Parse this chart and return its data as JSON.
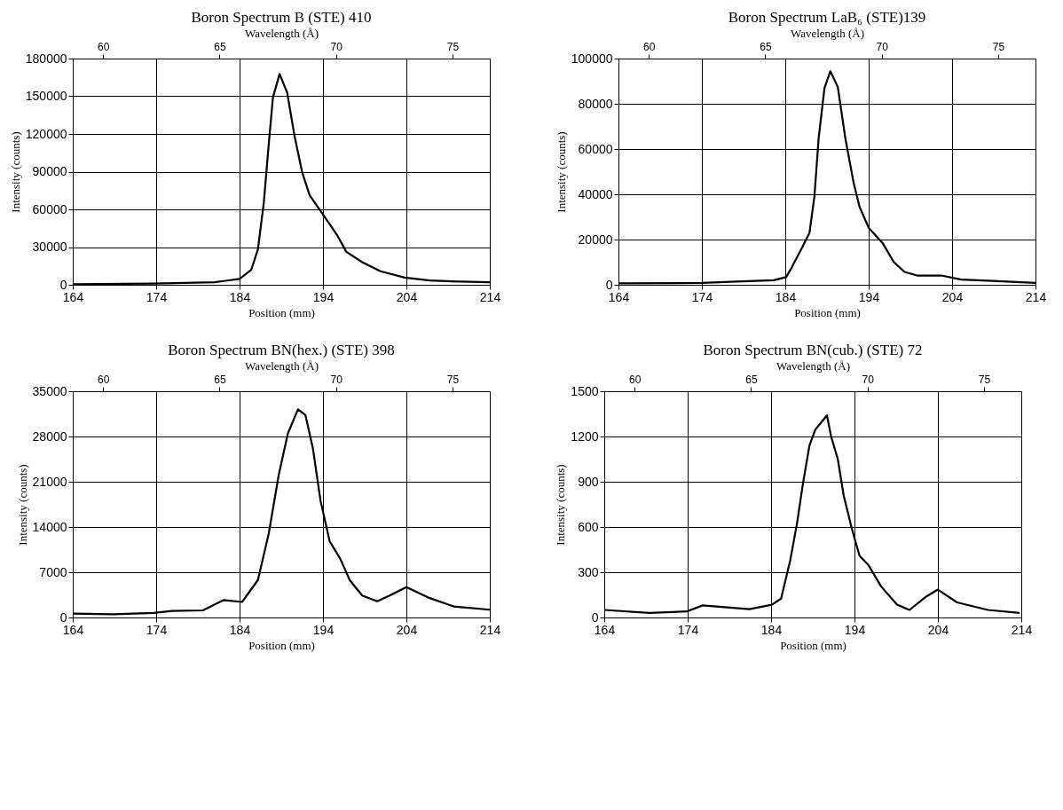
{
  "chart_data": [
    {
      "type": "line",
      "title": "Boron Spectrum B (STE) 410",
      "xlabel": "Position (mm)",
      "ylabel": "Intensity (counts)",
      "x2label": "Wavelength (Å)",
      "xlim": [
        164,
        214
      ],
      "xticks": [
        164,
        174,
        184,
        194,
        204,
        214
      ],
      "ylim": [
        0,
        180000
      ],
      "yticks": [
        0,
        30000,
        60000,
        90000,
        120000,
        150000,
        180000
      ],
      "x2lim": [
        58.7,
        76.6
      ],
      "x2ticks": [
        60,
        65,
        70,
        75
      ],
      "grid": true,
      "legend": false,
      "line_style": "solid",
      "series": [
        {
          "color": "#000000",
          "x": [
            164,
            173.7,
            181,
            184,
            185.4,
            186.2,
            186.9,
            187.5,
            188.0,
            188.8,
            189.7,
            190.6,
            191.5,
            192.4,
            193.9,
            195.7,
            196.8,
            198.7,
            200.9,
            203.8,
            206.8,
            210.4,
            214
          ],
          "values": [
            500,
            1000,
            2000,
            4700,
            11900,
            28200,
            65000,
            112000,
            149000,
            167700,
            153000,
            118000,
            89600,
            71200,
            56900,
            39500,
            26200,
            18000,
            10800,
            5700,
            3500,
            2500,
            2000
          ]
        }
      ]
    },
    {
      "type": "line",
      "title": "Boron Spectrum LaB₆ (STE)139",
      "xlabel": "Position (mm)",
      "ylabel": "Intensity (counts)",
      "x2label": "Wavelength (Å)",
      "xlim": [
        164,
        214
      ],
      "xticks": [
        164,
        174,
        184,
        194,
        204,
        214
      ],
      "ylim": [
        0,
        100000
      ],
      "yticks": [
        0,
        20000,
        40000,
        60000,
        80000,
        100000
      ],
      "x2lim": [
        58.7,
        76.6
      ],
      "x2ticks": [
        60,
        65,
        70,
        75
      ],
      "grid": true,
      "legend": false,
      "line_style": "solid",
      "series": [
        {
          "color": "#000000",
          "x": [
            164,
            174,
            178.8,
            182.6,
            184.1,
            184.8,
            186.1,
            186.9,
            187.5,
            188.0,
            188.7,
            189.4,
            190.3,
            191.2,
            192.2,
            192.9,
            194.0,
            195.7,
            197.0,
            198.3,
            199.8,
            202.7,
            205.1,
            208.9,
            214
          ],
          "values": [
            600,
            800,
            1500,
            2000,
            3400,
            7800,
            17100,
            22900,
            39200,
            64800,
            86900,
            94400,
            87400,
            64800,
            45000,
            34500,
            25200,
            18300,
            10100,
            5700,
            4100,
            4100,
            2300,
            1700,
            800
          ]
        }
      ]
    },
    {
      "type": "line",
      "title": "Boron Spectrum BN(hex.) (STE) 398",
      "xlabel": "Position (mm)",
      "ylabel": "Intensity (counts)",
      "x2label": "Wavelength (Å)",
      "xlim": [
        164,
        214
      ],
      "xticks": [
        164,
        174,
        184,
        194,
        204,
        214
      ],
      "ylim": [
        0,
        35000
      ],
      "yticks": [
        0,
        7000,
        14000,
        21000,
        28000,
        35000
      ],
      "x2lim": [
        58.7,
        76.6
      ],
      "x2ticks": [
        60,
        65,
        70,
        75
      ],
      "grid": true,
      "legend": false,
      "line_style": "solid",
      "series": [
        {
          "color": "#000000",
          "x": [
            164,
            168.9,
            173.7,
            175.9,
            179.6,
            182.1,
            184.3,
            186.2,
            187.5,
            188.7,
            189.8,
            191.0,
            191.9,
            192.8,
            193.7,
            194.8,
            196.1,
            197.2,
            198.7,
            200.5,
            202.0,
            204.0,
            206.8,
            209.7,
            214
          ],
          "values": [
            600,
            500,
            700,
            1000,
            1100,
            2700,
            2400,
            5800,
            13000,
            22100,
            28500,
            32200,
            31300,
            26100,
            18100,
            11800,
            9000,
            5800,
            3400,
            2500,
            3400,
            4700,
            3000,
            1700,
            1200
          ]
        }
      ]
    },
    {
      "type": "line",
      "title": "Boron Spectrum BN(cub.) (STE) 72",
      "xlabel": "Position (mm)",
      "ylabel": "Intensity (counts)",
      "x2label": "Wavelength (Å)",
      "xlim": [
        164,
        214
      ],
      "xticks": [
        164,
        174,
        184,
        194,
        204,
        214
      ],
      "ylim": [
        0,
        1500
      ],
      "yticks": [
        0,
        300,
        600,
        900,
        1200,
        1500
      ],
      "x2lim": [
        58.7,
        76.6
      ],
      "x2ticks": [
        60,
        65,
        70,
        75
      ],
      "grid": true,
      "legend": false,
      "line_style": "solid",
      "series": [
        {
          "color": "#000000",
          "x": [
            164,
            169.4,
            173.9,
            175.8,
            181.4,
            184.1,
            185.2,
            186.3,
            187.1,
            187.8,
            188.6,
            189.3,
            190.1,
            190.7,
            191.2,
            192.0,
            192.7,
            193.7,
            194.6,
            195.7,
            197.2,
            199.1,
            200.6,
            202.5,
            204.0,
            206.3,
            210.0,
            213.8
          ],
          "values": [
            50,
            30,
            40,
            80,
            55,
            85,
            125,
            380,
            620,
            880,
            1140,
            1245,
            1300,
            1340,
            1200,
            1050,
            810,
            585,
            410,
            345,
            205,
            85,
            50,
            135,
            185,
            100,
            50,
            30
          ]
        }
      ]
    }
  ]
}
